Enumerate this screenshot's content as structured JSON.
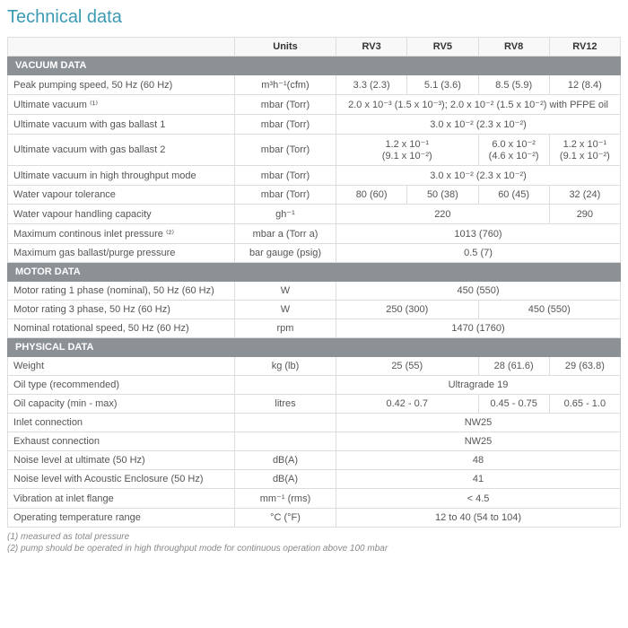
{
  "title": "Technical data",
  "columns": {
    "units": "Units",
    "c1": "RV3",
    "c2": "RV5",
    "c3": "RV8",
    "c4": "RV12"
  },
  "sections": {
    "vacuum": "VACUUM DATA",
    "motor": "MOTOR DATA",
    "physical": "PHYSICAL DATA"
  },
  "rows": {
    "peak": {
      "label": "Peak pumping speed, 50 Hz (60 Hz)",
      "units": "m³h⁻¹(cfm)",
      "v": [
        "3.3 (2.3)",
        "5.1 (3.6)",
        "8.5 (5.9)",
        "12 (8.4)"
      ]
    },
    "ultvac": {
      "label": "Ultimate vacuum ⁽¹⁾",
      "units": "mbar (Torr)",
      "merged": "2.0 x 10⁻³ (1.5 x 10⁻³); 2.0 x 10⁻² (1.5 x 10⁻²) with PFPE oil"
    },
    "gb1": {
      "label": "Ultimate vacuum with gas ballast 1",
      "units": "mbar (Torr)",
      "merged": "3.0 x 10⁻² (2.3 x 10⁻²)"
    },
    "gb2": {
      "label": "Ultimate vacuum with gas ballast 2",
      "units": "mbar (Torr)",
      "a": "1.2 x 10⁻¹\n(9.1 x 10⁻²)",
      "b": "6.0 x 10⁻²\n(4.6 x 10⁻²)",
      "c": "1.2 x 10⁻¹\n(9.1 x 10⁻²)"
    },
    "hithru": {
      "label": "Ultimate vacuum in high throughput mode",
      "units": "mbar (Torr)",
      "merged": "3.0 x 10⁻² (2.3 x 10⁻²)"
    },
    "wvt": {
      "label": "Water vapour tolerance",
      "units": "mbar (Torr)",
      "v": [
        "80 (60)",
        "50 (38)",
        "60 (45)",
        "32 (24)"
      ]
    },
    "wvh": {
      "label": "Water vapour handling capacity",
      "units": "gh⁻¹",
      "a": "220",
      "b": "290"
    },
    "maxin": {
      "label": "Maximum continous inlet pressure ⁽²⁾",
      "units": "mbar a (Torr a)",
      "merged": "1013 (760)"
    },
    "maxgb": {
      "label": "Maximum gas ballast/purge pressure",
      "units": "bar gauge (psig)",
      "merged": "0.5 (7)"
    },
    "m1p": {
      "label": "Motor rating 1 phase (nominal), 50 Hz (60 Hz)",
      "units": "W",
      "merged": "450 (550)"
    },
    "m3p": {
      "label": "Motor rating 3 phase, 50 Hz (60 Hz)",
      "units": "W",
      "a": "250 (300)",
      "b": "450 (550)"
    },
    "nrs": {
      "label": "Nominal rotational speed, 50 Hz (60 Hz)",
      "units": "rpm",
      "merged": "1470 (1760)"
    },
    "weight": {
      "label": "Weight",
      "units": "kg (lb)",
      "a": "25 (55)",
      "b": "28 (61.6)",
      "c": "29 (63.8)"
    },
    "oiltype": {
      "label": "Oil type (recommended)",
      "units": "",
      "merged": "Ultragrade 19"
    },
    "oilcap": {
      "label": "Oil capacity (min - max)",
      "units": "litres",
      "a": "0.42 - 0.7",
      "b": "0.45 - 0.75",
      "c": "0.65 - 1.0"
    },
    "inlet": {
      "label": "Inlet connection",
      "units": "",
      "merged": "NW25"
    },
    "exhaust": {
      "label": "Exhaust connection",
      "units": "",
      "merged": "NW25"
    },
    "noise": {
      "label": "Noise level at ultimate (50 Hz)",
      "units": "dB(A)",
      "merged": "48"
    },
    "noiseenc": {
      "label": "Noise level with Acoustic Enclosure (50 Hz)",
      "units": "dB(A)",
      "merged": "41"
    },
    "vib": {
      "label": "Vibration at inlet flange",
      "units": "mm⁻¹ (rms)",
      "merged": "< 4.5"
    },
    "optemp": {
      "label": "Operating temperature range",
      "units": "°C (°F)",
      "merged": "12 to 40 (54 to 104)"
    }
  },
  "footnotes": {
    "f1": "(1) measured as total pressure",
    "f2": "(2) pump should be operated in high throughput mode for continuous operation above 100 mbar"
  }
}
